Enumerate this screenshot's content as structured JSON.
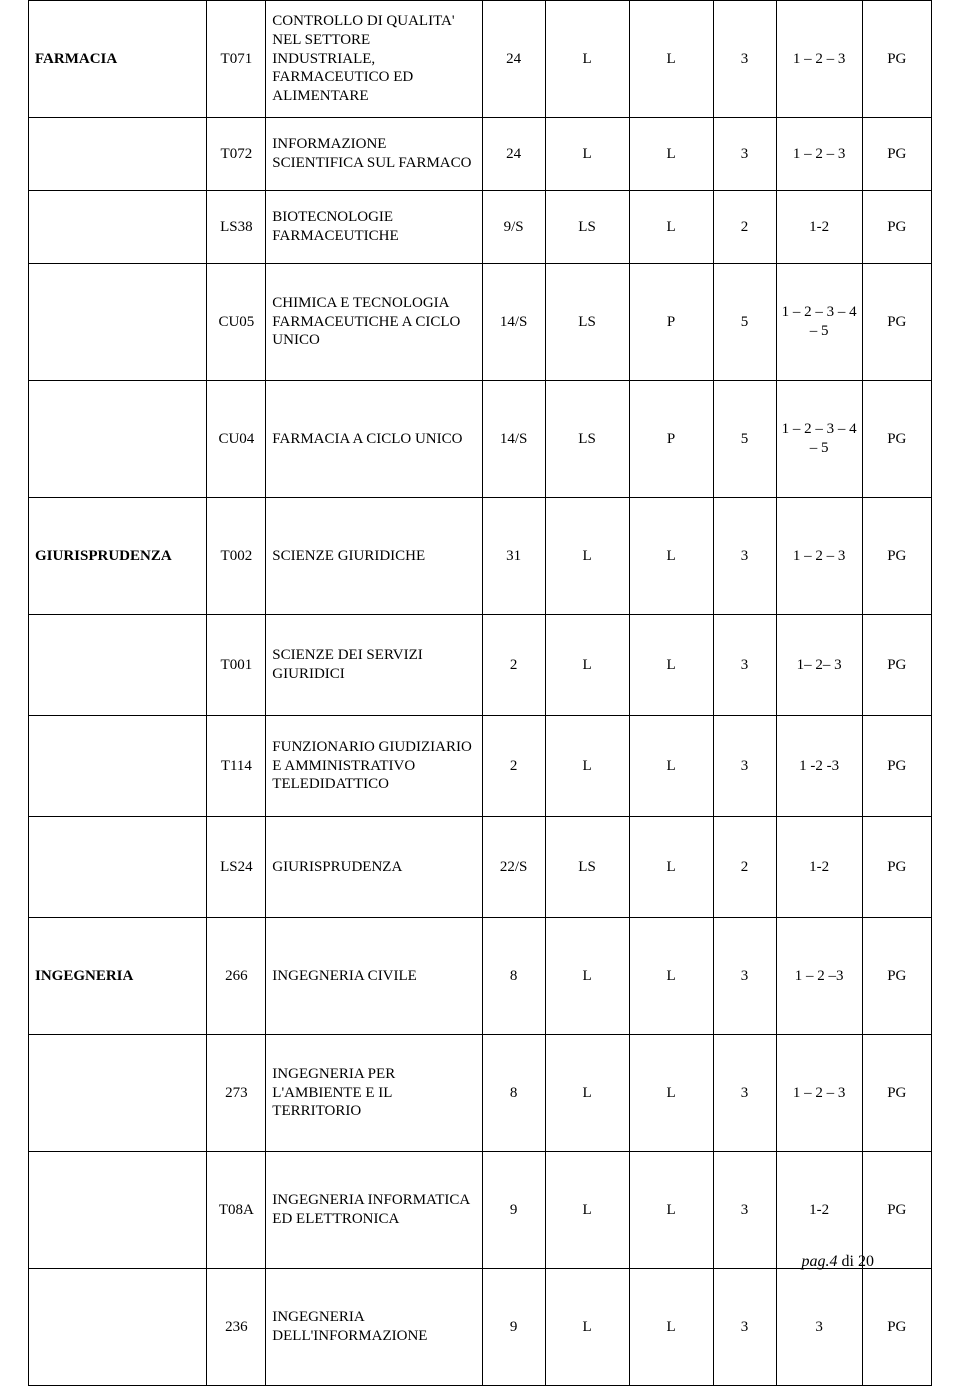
{
  "rows": [
    {
      "h": "tall",
      "dept": "FARMACIA",
      "code": "T071",
      "course": "CONTROLLO DI QUALITA' NEL SETTORE INDUSTRIALE, FARMACEUTICO ED ALIMENTARE",
      "c3": "24",
      "c4": "L",
      "c5": "L",
      "c6": "3",
      "c7": "1 – 2 – 3",
      "c8": "PG"
    },
    {
      "h": "short",
      "dept": "",
      "code": "T072",
      "course": "INFORMAZIONE SCIENTIFICA SUL FARMACO",
      "c3": "24",
      "c4": "L",
      "c5": "L",
      "c6": "3",
      "c7": "1 – 2 – 3",
      "c8": "PG"
    },
    {
      "h": "short",
      "dept": "",
      "code": "LS38",
      "course": "BIOTECNOLOGIE FARMACEUTICHE",
      "c3": "9/S",
      "c4": "LS",
      "c5": "L",
      "c6": "2",
      "c7": "1-2",
      "c8": "PG"
    },
    {
      "h": "tall",
      "dept": "",
      "code": "CU05",
      "course": "CHIMICA E TECNOLOGIA FARMACEUTICHE A CICLO UNICO",
      "c3": "14/S",
      "c4": "LS",
      "c5": "P",
      "c6": "5",
      "c7": "1 – 2 – 3 – 4 – 5",
      "c8": "PG"
    },
    {
      "h": "tall",
      "dept": "",
      "code": "CU04",
      "course": "FARMACIA A CICLO UNICO",
      "c3": "14/S",
      "c4": "LS",
      "c5": "P",
      "c6": "5",
      "c7": "1 – 2 – 3 – 4 – 5",
      "c8": "PG"
    },
    {
      "h": "tall",
      "dept": "GIURISPRUDENZA",
      "code": "T002",
      "course": "SCIENZE GIURIDICHE",
      "c3": "31",
      "c4": "L",
      "c5": "L",
      "c6": "3",
      "c7": "1 – 2 – 3",
      "c8": "PG"
    },
    {
      "h": "med",
      "dept": "",
      "code": "T001",
      "course": "SCIENZE DEI SERVIZI GIURIDICI",
      "c3": "2",
      "c4": "L",
      "c5": "L",
      "c6": "3",
      "c7": "1– 2– 3",
      "c8": "PG"
    },
    {
      "h": "med",
      "dept": "",
      "code": "T114",
      "course": "FUNZIONARIO GIUDIZIARIO E AMMINISTRATIVO TELEDIDATTICO",
      "c3": "2",
      "c4": "L",
      "c5": "L",
      "c6": "3",
      "c7": "1 -2 -3",
      "c8": "PG"
    },
    {
      "h": "med",
      "dept": "",
      "code": "LS24",
      "course": "GIURISPRUDENZA",
      "c3": "22/S",
      "c4": "LS",
      "c5": "L",
      "c6": "2",
      "c7": "1-2",
      "c8": "PG"
    },
    {
      "h": "tall",
      "dept": "INGEGNERIA",
      "code": "266",
      "course": "INGEGNERIA CIVILE",
      "c3": "8",
      "c4": "L",
      "c5": "L",
      "c6": "3",
      "c7": "1 – 2 –3",
      "c8": "PG"
    },
    {
      "h": "tall",
      "dept": "",
      "code": "273",
      "course": "INGEGNERIA PER L'AMBIENTE E IL TERRITORIO",
      "c3": "8",
      "c4": "L",
      "c5": "L",
      "c6": "3",
      "c7": "1 – 2 – 3",
      "c8": "PG"
    },
    {
      "h": "tall",
      "dept": "",
      "code": "T08A",
      "course": "INGEGNERIA INFORMATICA ED ELETTRONICA",
      "c3": "9",
      "c4": "L",
      "c5": "L",
      "c6": "3",
      "c7": "1-2",
      "c8": "PG"
    },
    {
      "h": "tall",
      "dept": "",
      "code": "236",
      "course": "INGEGNERIA DELL'INFORMAZIONE",
      "c3": "9",
      "c4": "L",
      "c5": "L",
      "c6": "3",
      "c7": "3",
      "c8": "PG"
    }
  ],
  "footer": {
    "prefix": "pag.",
    "page": "4",
    "of_word": "di",
    "total": "20"
  }
}
